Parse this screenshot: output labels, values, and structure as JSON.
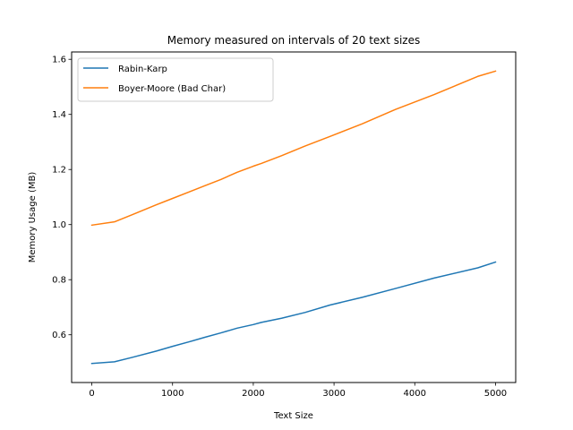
{
  "chart_data": {
    "type": "line",
    "title": "Memory measured on intervals of 20 text sizes",
    "xlabel": "Text Size",
    "ylabel": "Memory Usage (MB)",
    "xlim": [
      -250,
      5250
    ],
    "ylim": [
      0.4267,
      1.6267
    ],
    "xticks": [
      0,
      1000,
      2000,
      3000,
      4000,
      5000
    ],
    "xtick_labels": [
      "0",
      "1000",
      "2000",
      "3000",
      "4000",
      "5000"
    ],
    "yticks": [
      0.6,
      0.8,
      1.0,
      1.2,
      1.4,
      1.6
    ],
    "ytick_labels": [
      "0.6",
      "0.8",
      "1.0",
      "1.2",
      "1.4",
      "1.6"
    ],
    "grid": false,
    "legend_position": "top-left",
    "series": [
      {
        "name": "Rabin-Karp",
        "color": "#1f77b4",
        "points": [
          [
            0,
            0.496
          ],
          [
            280,
            0.502
          ],
          [
            500,
            0.518
          ],
          [
            800,
            0.541
          ],
          [
            1000,
            0.558
          ],
          [
            1200,
            0.574
          ],
          [
            1400,
            0.591
          ],
          [
            1600,
            0.607
          ],
          [
            1800,
            0.624
          ],
          [
            2000,
            0.637
          ],
          [
            2100,
            0.645
          ],
          [
            2350,
            0.66
          ],
          [
            2640,
            0.681
          ],
          [
            2950,
            0.708
          ],
          [
            3350,
            0.736
          ],
          [
            3760,
            0.768
          ],
          [
            4240,
            0.806
          ],
          [
            4780,
            0.843
          ],
          [
            5000,
            0.864
          ]
        ]
      },
      {
        "name": "Boyer-Moore (Bad Char)",
        "color": "#ff7f0e",
        "points": [
          [
            0,
            0.998
          ],
          [
            280,
            1.01
          ],
          [
            500,
            1.036
          ],
          [
            800,
            1.072
          ],
          [
            1000,
            1.095
          ],
          [
            1200,
            1.118
          ],
          [
            1400,
            1.141
          ],
          [
            1600,
            1.164
          ],
          [
            1800,
            1.19
          ],
          [
            2000,
            1.212
          ],
          [
            2100,
            1.222
          ],
          [
            2350,
            1.25
          ],
          [
            2640,
            1.285
          ],
          [
            2950,
            1.32
          ],
          [
            3350,
            1.366
          ],
          [
            3760,
            1.418
          ],
          [
            4240,
            1.472
          ],
          [
            4780,
            1.538
          ],
          [
            5000,
            1.557
          ]
        ]
      }
    ]
  }
}
